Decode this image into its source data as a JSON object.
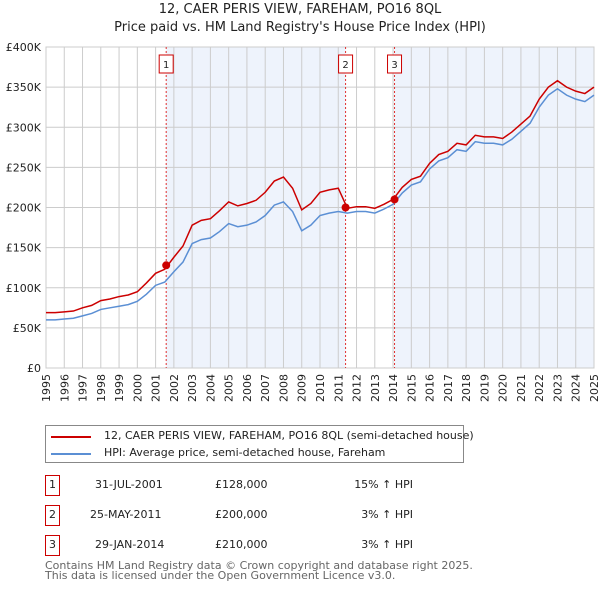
{
  "chart_data": {
    "type": "line",
    "title": "12, CAER PERIS VIEW, FAREHAM, PO16 8QL",
    "subtitle": "Price paid vs. HM Land Registry's House Price Index (HPI)",
    "xlim": [
      1995,
      2025
    ],
    "ylim": [
      0,
      400000
    ],
    "yticks": [
      "£0",
      "£50K",
      "£100K",
      "£150K",
      "£200K",
      "£250K",
      "£300K",
      "£350K",
      "£400K"
    ],
    "xticks": [
      "1995",
      "1996",
      "1997",
      "1998",
      "1999",
      "2000",
      "2001",
      "2002",
      "2003",
      "2004",
      "2005",
      "2006",
      "2007",
      "2008",
      "2009",
      "2010",
      "2011",
      "2012",
      "2013",
      "2014",
      "2015",
      "2016",
      "2017",
      "2018",
      "2019",
      "2020",
      "2021",
      "2022",
      "2023",
      "2024",
      "2025"
    ],
    "grid": true,
    "x_start": 1995,
    "x_step": 0.5,
    "series": [
      {
        "name": "12, CAER PERIS VIEW, FAREHAM, PO16 8QL (semi-detached house)",
        "color": "#cc0000",
        "values": [
          69,
          69,
          70,
          71,
          75,
          78,
          84,
          86,
          89,
          91,
          95,
          106,
          118,
          123,
          138,
          152,
          178,
          184,
          186,
          196,
          207,
          202,
          205,
          209,
          219,
          233,
          238,
          224,
          197,
          205,
          219,
          222,
          224,
          199,
          201,
          201,
          199,
          204,
          210,
          225,
          235,
          239,
          255,
          266,
          270,
          280,
          278,
          290,
          288,
          288,
          286,
          294,
          304,
          314,
          335,
          350,
          358,
          350,
          345,
          342,
          350
        ]
      },
      {
        "name": "HPI: Average price, semi-detached house, Fareham",
        "color": "#5b8fd4",
        "values": [
          60,
          60,
          61,
          62,
          65,
          68,
          73,
          75,
          77,
          79,
          83,
          92,
          103,
          107,
          120,
          132,
          155,
          160,
          162,
          170,
          180,
          176,
          178,
          182,
          190,
          203,
          207,
          195,
          171,
          178,
          190,
          193,
          195,
          193,
          195,
          195,
          193,
          198,
          204,
          218,
          228,
          232,
          248,
          258,
          262,
          272,
          270,
          282,
          280,
          280,
          278,
          285,
          295,
          305,
          325,
          340,
          348,
          340,
          335,
          332,
          340
        ]
      }
    ],
    "value_unit": 1000,
    "sales": [
      {
        "label": "1",
        "x": 2001.58,
        "y": 128000,
        "date": "31-JUL-2001",
        "price": "£128,000",
        "hpi": "15% ↑ HPI"
      },
      {
        "label": "2",
        "x": 2011.4,
        "y": 200000,
        "date": "25-MAY-2011",
        "price": "£200,000",
        "hpi": "3% ↑ HPI"
      },
      {
        "label": "3",
        "x": 2014.08,
        "y": 210000,
        "date": "29-JAN-2014",
        "price": "£210,000",
        "hpi": "3% ↑ HPI"
      }
    ],
    "shaded": [
      [
        2001.58,
        2011.4
      ],
      [
        2014.08,
        2025
      ]
    ],
    "legend": "below"
  },
  "footer": {
    "line1": "Contains HM Land Registry data © Crown copyright and database right 2025.",
    "line2": "This data is licensed under the Open Government Licence v3.0."
  }
}
